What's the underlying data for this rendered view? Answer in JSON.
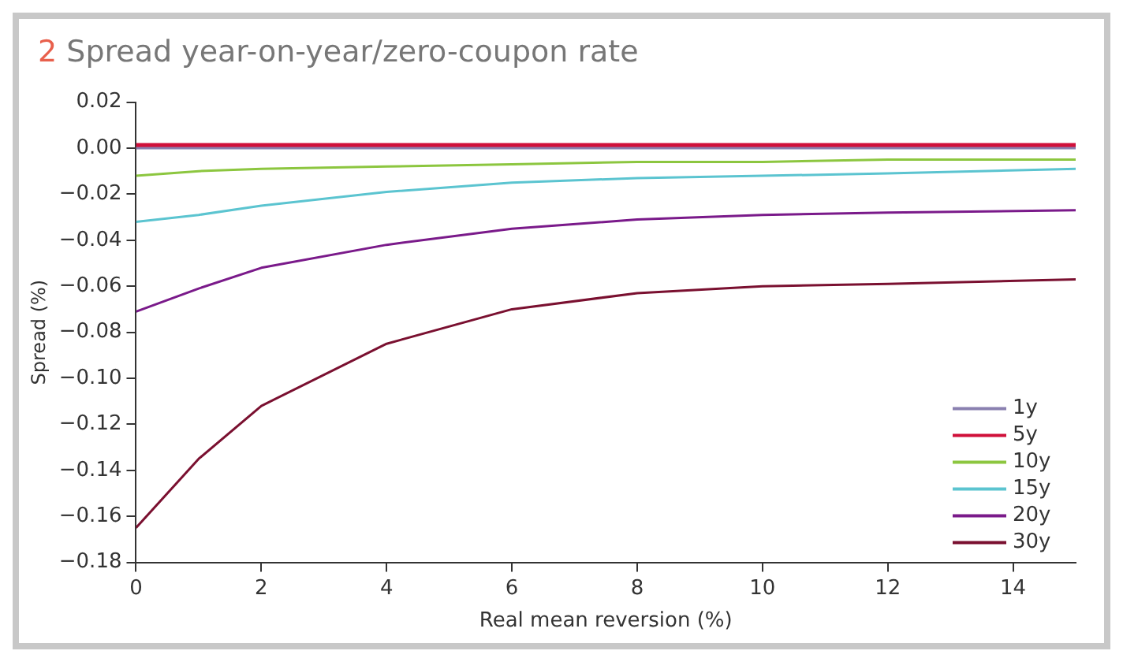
{
  "chart_data": {
    "type": "line",
    "title": "2 Spread year-on-year/zero-coupon rate",
    "xlabel": "Real mean reversion (%)",
    "ylabel": "Spread (%)",
    "x": [
      0,
      1,
      2,
      4,
      6,
      8,
      10,
      12,
      15
    ],
    "series": [
      {
        "name": "1y",
        "color": "#8a80b0",
        "values": [
          0,
          0,
          0,
          0,
          0,
          0,
          0,
          0,
          0
        ]
      },
      {
        "name": "5y",
        "color": "#d0103a",
        "values": [
          0.001,
          0.001,
          0.001,
          0.001,
          0.001,
          0.001,
          0.001,
          0.001,
          0.001
        ]
      },
      {
        "name": "10y",
        "color": "#8cc63f",
        "values": [
          -0.012,
          -0.01,
          -0.009,
          -0.008,
          -0.007,
          -0.006,
          -0.006,
          -0.005,
          -0.005
        ]
      },
      {
        "name": "15y",
        "color": "#5bc4d0",
        "values": [
          -0.032,
          -0.029,
          -0.025,
          -0.019,
          -0.015,
          -0.013,
          -0.012,
          -0.011,
          -0.009
        ]
      },
      {
        "name": "20y",
        "color": "#7a1a8a",
        "values": [
          -0.071,
          -0.061,
          -0.052,
          -0.042,
          -0.035,
          -0.031,
          -0.029,
          -0.028,
          -0.027
        ]
      },
      {
        "name": "30y",
        "color": "#7a1030",
        "values": [
          -0.165,
          -0.135,
          -0.112,
          -0.085,
          -0.07,
          -0.063,
          -0.06,
          -0.059,
          -0.057
        ]
      }
    ],
    "xlim": [
      0,
      15
    ],
    "xticks": [
      0,
      2,
      4,
      6,
      8,
      10,
      12,
      14
    ],
    "ylim": [
      -0.18,
      0.02
    ],
    "yticks": [
      {
        "value": 0.02,
        "label": "0.02"
      },
      {
        "value": 0,
        "label": "0.00"
      },
      {
        "value": -0.02,
        "label": "−0.02"
      },
      {
        "value": -0.04,
        "label": "−0.04"
      },
      {
        "value": -0.06,
        "label": "−0.06"
      },
      {
        "value": -0.08,
        "label": "−0.08"
      },
      {
        "value": -0.1,
        "label": "−0.10"
      },
      {
        "value": -0.12,
        "label": "−0.12"
      },
      {
        "value": -0.14,
        "label": "−0.14"
      },
      {
        "value": -0.16,
        "label": "−0.16"
      },
      {
        "value": -0.18,
        "label": "−0.18"
      }
    ],
    "grid": false,
    "legend": "bottom right",
    "marker": "none",
    "line_style": "solid"
  }
}
